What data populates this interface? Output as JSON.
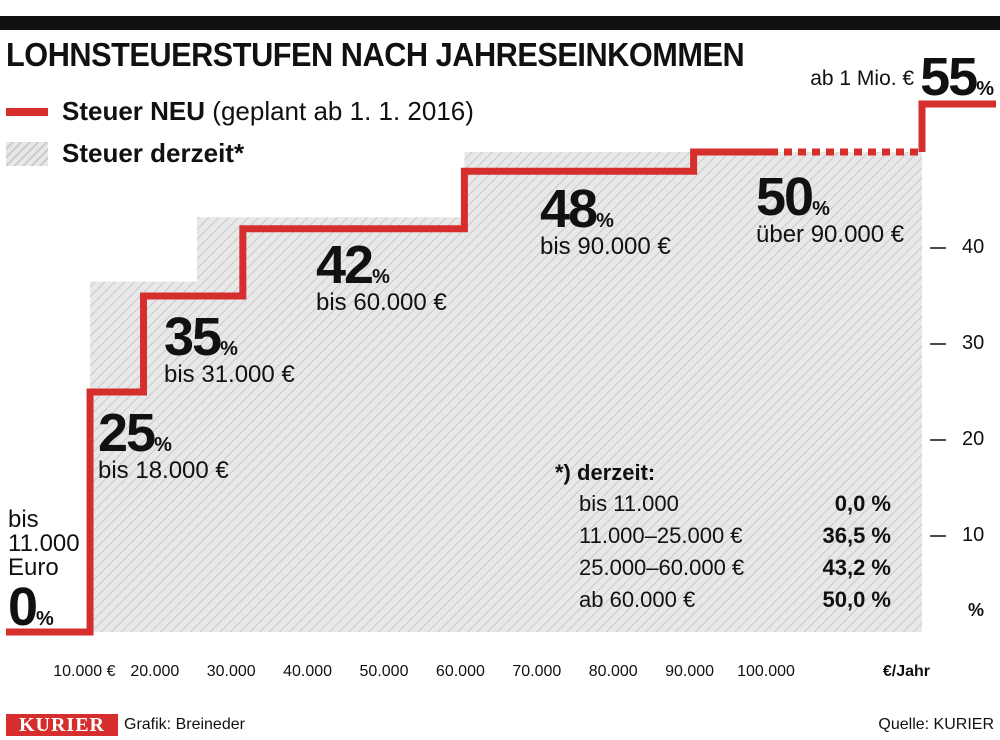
{
  "title": "LOHNSTEUERSTUFEN NACH JAHRESEINKOMMEN",
  "legend": {
    "new_bold": "Steuer NEU",
    "new_rest": "(geplant ab 1. 1. 2016)",
    "old": "Steuer derzeit*"
  },
  "top_right": {
    "prefix": "ab 1 Mio. €",
    "rate": "55",
    "unit": "%"
  },
  "colors": {
    "new_line": "#d62d2d",
    "hatch_bg": "#e8e8e8",
    "hatch_line": "#c9c9c9",
    "text": "#111111"
  },
  "chart_data": {
    "type": "area",
    "title": "LOHNSTEUERSTUFEN NACH JAHRESEINKOMMEN",
    "xlabel": "€/Jahr",
    "ylabel": "%",
    "xlim": [
      0,
      120000
    ],
    "ylim": [
      0,
      55
    ],
    "x_ticks": [
      "10.000 €",
      "20.000",
      "30.000",
      "40.000",
      "50.000",
      "60.000",
      "70.000",
      "80.000",
      "90.000",
      "100.000"
    ],
    "x_tick_values": [
      10000,
      20000,
      30000,
      40000,
      50000,
      60000,
      70000,
      80000,
      90000,
      100000
    ],
    "y_ticks": [
      10,
      20,
      30,
      40
    ],
    "grid": false,
    "legend_position": "top-left",
    "series": [
      {
        "name": "Steuer NEU",
        "style": "step-line",
        "points": [
          [
            0,
            0
          ],
          [
            11000,
            0
          ],
          [
            11000,
            25
          ],
          [
            18000,
            25
          ],
          [
            18000,
            35
          ],
          [
            31000,
            35
          ],
          [
            31000,
            42
          ],
          [
            60000,
            42
          ],
          [
            60000,
            48
          ],
          [
            90000,
            48
          ],
          [
            90000,
            50
          ],
          [
            120000,
            50
          ],
          [
            120000,
            55
          ]
        ]
      },
      {
        "name": "Steuer derzeit*",
        "style": "hatched-area",
        "points": [
          [
            0,
            0
          ],
          [
            11000,
            0
          ],
          [
            11000,
            36.5
          ],
          [
            25000,
            36.5
          ],
          [
            25000,
            43.2
          ],
          [
            60000,
            43.2
          ],
          [
            60000,
            50
          ],
          [
            120000,
            50
          ]
        ]
      }
    ],
    "annotations": {
      "zero": {
        "line1": "bis",
        "line2": "11.000",
        "line3": "Euro",
        "rate": "0",
        "unit": "%"
      },
      "steps": [
        {
          "rate": "25",
          "unit": "%",
          "range": "bis 18.000 €"
        },
        {
          "rate": "35",
          "unit": "%",
          "range": "bis 31.000 €"
        },
        {
          "rate": "42",
          "unit": "%",
          "range": "bis 60.000 €"
        },
        {
          "rate": "48",
          "unit": "%",
          "range": "bis 90.000 €"
        },
        {
          "rate": "50",
          "unit": "%",
          "range": "über 90.000 €"
        }
      ]
    }
  },
  "current_table": {
    "heading": "*) derzeit:",
    "rows": [
      {
        "range": "bis 11.000",
        "rate": "0,0 %"
      },
      {
        "range": "11.000–25.000 €",
        "rate": "36,5 %"
      },
      {
        "range": "25.000–60.000 €",
        "rate": "43,2 %"
      },
      {
        "range": "ab 60.000 €",
        "rate": "50,0 %"
      }
    ]
  },
  "footer": {
    "logo": "KURIER",
    "credit": "Grafik: Breineder",
    "source": "Quelle: KURIER"
  }
}
